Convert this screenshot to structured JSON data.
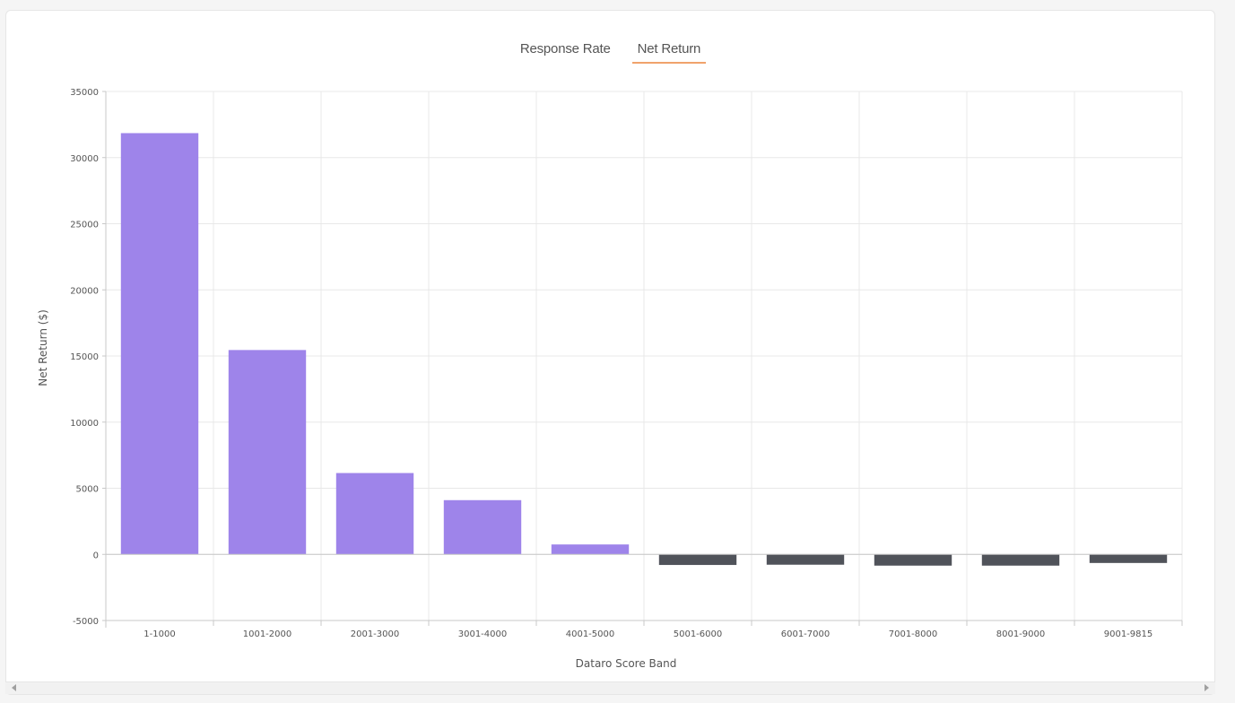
{
  "tabs": [
    {
      "label": "Response Rate",
      "active": false
    },
    {
      "label": "Net Return",
      "active": true
    }
  ],
  "colors": {
    "positive": "#9e84ea",
    "negative": "#50535a",
    "tab_underline": "#f0a36b",
    "grid": "#e8e8e8",
    "axis": "#c8c8c8",
    "tick_text": "#555555"
  },
  "chart_data": {
    "type": "bar",
    "xlabel": "Dataro Score Band",
    "ylabel": "Net Return ($)",
    "ylim": [
      -5000,
      35000
    ],
    "yticks": [
      35000,
      30000,
      25000,
      20000,
      15000,
      10000,
      5000,
      0,
      -5000
    ],
    "grid": true,
    "categories": [
      "1-1000",
      "1001-2000",
      "2001-3000",
      "3001-4000",
      "4001-5000",
      "5001-6000",
      "6001-7000",
      "7001-8000",
      "8001-9000",
      "9001-9815"
    ],
    "values": [
      31850,
      15450,
      6150,
      4100,
      750,
      -800,
      -780,
      -850,
      -850,
      -650
    ]
  }
}
